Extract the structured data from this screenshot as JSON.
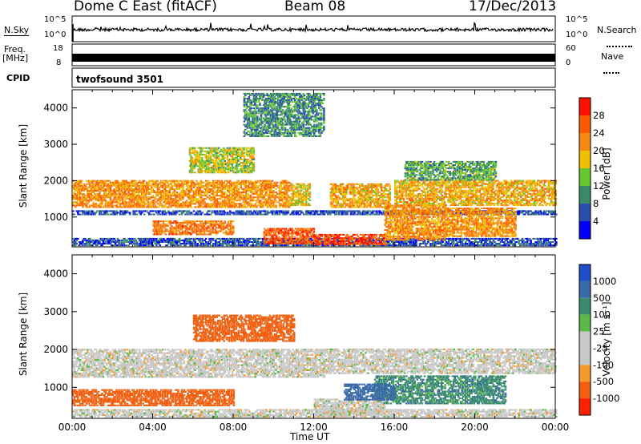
{
  "header": {
    "station": "Dome C East (fitACF)",
    "beam": "Beam 08",
    "date": "17/Dec/2013"
  },
  "sky_panel": {
    "left_label": "N.Sky",
    "left_ticks": [
      "10^5",
      "10^0"
    ],
    "right_label": "N.Search",
    "right_ticks": [
      "10^5",
      "10^0"
    ]
  },
  "freq_panel": {
    "left_label_1": "Freq.",
    "left_label_2": "[MHz]",
    "left_ticks": [
      "18",
      "8"
    ],
    "right_label": "Nave",
    "right_ticks": [
      "60",
      "0"
    ]
  },
  "cpid_panel": {
    "label": "CPID",
    "value": "twofsound 3501"
  },
  "colors": {
    "power_scale": [
      "#0000ff",
      "#2a4db0",
      "#3a8a6a",
      "#66c830",
      "#f0c000",
      "#f48a10",
      "#ff5a00",
      "#ff1000"
    ],
    "velocity_scale": [
      "#1e4fc8",
      "#3a6aa8",
      "#3a8a72",
      "#5cb84a",
      "#c8c8c8",
      "#c8c8c8",
      "#f59a28",
      "#f06010",
      "#ff2000"
    ]
  },
  "chart_data": [
    {
      "type": "heatmap",
      "name": "power",
      "xlabel": "",
      "ylabel": "Slant Range [km]",
      "xlim": [
        0,
        24
      ],
      "ylim": [
        180,
        4500
      ],
      "yticks": [
        "1000",
        "2000",
        "3000",
        "4000"
      ],
      "ytick_values": [
        1000,
        2000,
        3000,
        4000
      ],
      "colorbar_label": "Power [dB]",
      "colorbar_ticks": [
        "4",
        "8",
        "12",
        "16",
        "20",
        "24",
        "28"
      ],
      "colorbar_range": [
        0,
        32
      ],
      "bands": [
        {
          "t0": 0.0,
          "t1": 10.8,
          "r0": 1250,
          "r1": 2000,
          "level": 22
        },
        {
          "t0": 0.0,
          "t1": 24.0,
          "r0": 1050,
          "r1": 1150,
          "level": 6
        },
        {
          "t0": 0.0,
          "t1": 24.0,
          "r0": 200,
          "r1": 420,
          "level": 6
        },
        {
          "t0": 10.8,
          "t1": 11.8,
          "r0": 1300,
          "r1": 1900,
          "level": 18
        },
        {
          "t0": 12.8,
          "t1": 15.8,
          "r0": 1250,
          "r1": 1900,
          "level": 20
        },
        {
          "t0": 16.0,
          "t1": 24.0,
          "r0": 1300,
          "r1": 2000,
          "level": 20
        },
        {
          "t0": 12.0,
          "t1": 15.6,
          "r0": 220,
          "r1": 500,
          "level": 28
        },
        {
          "t0": 15.5,
          "t1": 18.5,
          "r0": 350,
          "r1": 1300,
          "level": 22
        },
        {
          "t0": 18.5,
          "t1": 22.0,
          "r0": 450,
          "r1": 1250,
          "level": 22
        },
        {
          "t0": 4.0,
          "t1": 8.0,
          "r0": 500,
          "r1": 900,
          "level": 24
        },
        {
          "t0": 9.5,
          "t1": 12.0,
          "r0": 250,
          "r1": 700,
          "level": 26
        },
        {
          "t0": 5.8,
          "t1": 9.0,
          "r0": 2200,
          "r1": 2900,
          "level": 16
        },
        {
          "t0": 8.5,
          "t1": 12.5,
          "r0": 3200,
          "r1": 4400,
          "level": 10
        },
        {
          "t0": 16.5,
          "t1": 21.0,
          "r0": 2000,
          "r1": 2500,
          "level": 12
        }
      ]
    },
    {
      "type": "heatmap",
      "name": "velocity",
      "xlabel": "Time UT",
      "ylabel": "Slant Range [km]",
      "xlim": [
        0,
        24
      ],
      "ylim": [
        180,
        4500
      ],
      "xticks": [
        "00:00",
        "04:00",
        "08:00",
        "12:00",
        "16:00",
        "20:00",
        "00:00"
      ],
      "xtick_values": [
        0,
        4,
        8,
        12,
        16,
        20,
        24
      ],
      "yticks": [
        "1000",
        "2000",
        "3000",
        "4000"
      ],
      "ytick_values": [
        1000,
        2000,
        3000,
        4000
      ],
      "colorbar_label": "Velocity [m s⁻¹]",
      "colorbar_ticks": [
        "1000",
        "500",
        "100",
        "25",
        "-25",
        "-100",
        "-500",
        "-1000"
      ],
      "bands": [
        {
          "t0": 0.0,
          "t1": 12.5,
          "r0": 1250,
          "r1": 2000,
          "level": 0
        },
        {
          "t0": 12.5,
          "t1": 24.0,
          "r0": 1350,
          "r1": 2000,
          "level": 0
        },
        {
          "t0": 0.0,
          "t1": 24.0,
          "r0": 200,
          "r1": 400,
          "level": 0
        },
        {
          "t0": 0.0,
          "t1": 8.0,
          "r0": 500,
          "r1": 950,
          "level": -150
        },
        {
          "t0": 6.0,
          "t1": 11.0,
          "r0": 2200,
          "r1": 2900,
          "level": -150
        },
        {
          "t0": 15.0,
          "t1": 21.5,
          "r0": 550,
          "r1": 1300,
          "level": 80
        },
        {
          "t0": 12.0,
          "t1": 15.5,
          "r0": 250,
          "r1": 700,
          "level": 0
        },
        {
          "t0": 13.5,
          "t1": 16.0,
          "r0": 650,
          "r1": 1100,
          "level": 150
        }
      ]
    }
  ]
}
